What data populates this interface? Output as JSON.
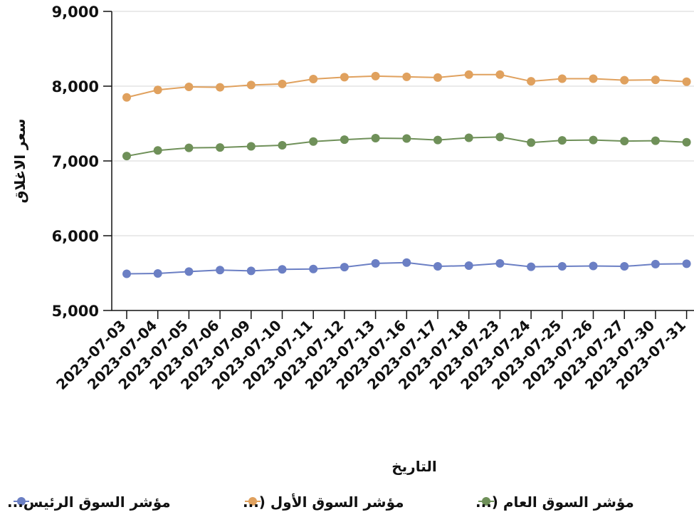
{
  "chart_data": {
    "type": "line",
    "title": "",
    "xlabel": "التاريخ",
    "ylabel": "سعر الاغلاق",
    "ylim": [
      5000,
      9000
    ],
    "yticks": [
      5000,
      6000,
      7000,
      8000,
      9000
    ],
    "ytick_labels": [
      "5,000",
      "6,000",
      "7,000",
      "8,000",
      "9,000"
    ],
    "grid": "horizontal",
    "legend_position": "bottom",
    "categories": [
      "2023-07-03",
      "2023-07-04",
      "2023-07-05",
      "2023-07-06",
      "2023-07-09",
      "2023-07-10",
      "2023-07-11",
      "2023-07-12",
      "2023-07-13",
      "2023-07-16",
      "2023-07-17",
      "2023-07-18",
      "2023-07-23",
      "2023-07-24",
      "2023-07-25",
      "2023-07-26",
      "2023-07-27",
      "2023-07-30",
      "2023-07-31"
    ],
    "series": [
      {
        "name": "مؤشر السوق الرئيس...",
        "color": "#6b7fc4",
        "values": [
          5490,
          5495,
          5520,
          5540,
          5530,
          5550,
          5555,
          5580,
          5630,
          5640,
          5590,
          5600,
          5630,
          5585,
          5590,
          5595,
          5590,
          5620,
          5625
        ]
      },
      {
        "name": "مؤشر السوق الأول (...",
        "color": "#e0a15e",
        "values": [
          7850,
          7950,
          7990,
          7985,
          8015,
          8030,
          8095,
          8120,
          8135,
          8125,
          8115,
          8155,
          8155,
          8065,
          8100,
          8100,
          8080,
          8085,
          8060
        ]
      },
      {
        "name": "مؤشر السوق العام (...",
        "color": "#6f9059",
        "values": [
          7065,
          7140,
          7175,
          7180,
          7195,
          7210,
          7260,
          7285,
          7305,
          7300,
          7280,
          7310,
          7320,
          7245,
          7275,
          7280,
          7265,
          7270,
          7250
        ]
      }
    ]
  }
}
